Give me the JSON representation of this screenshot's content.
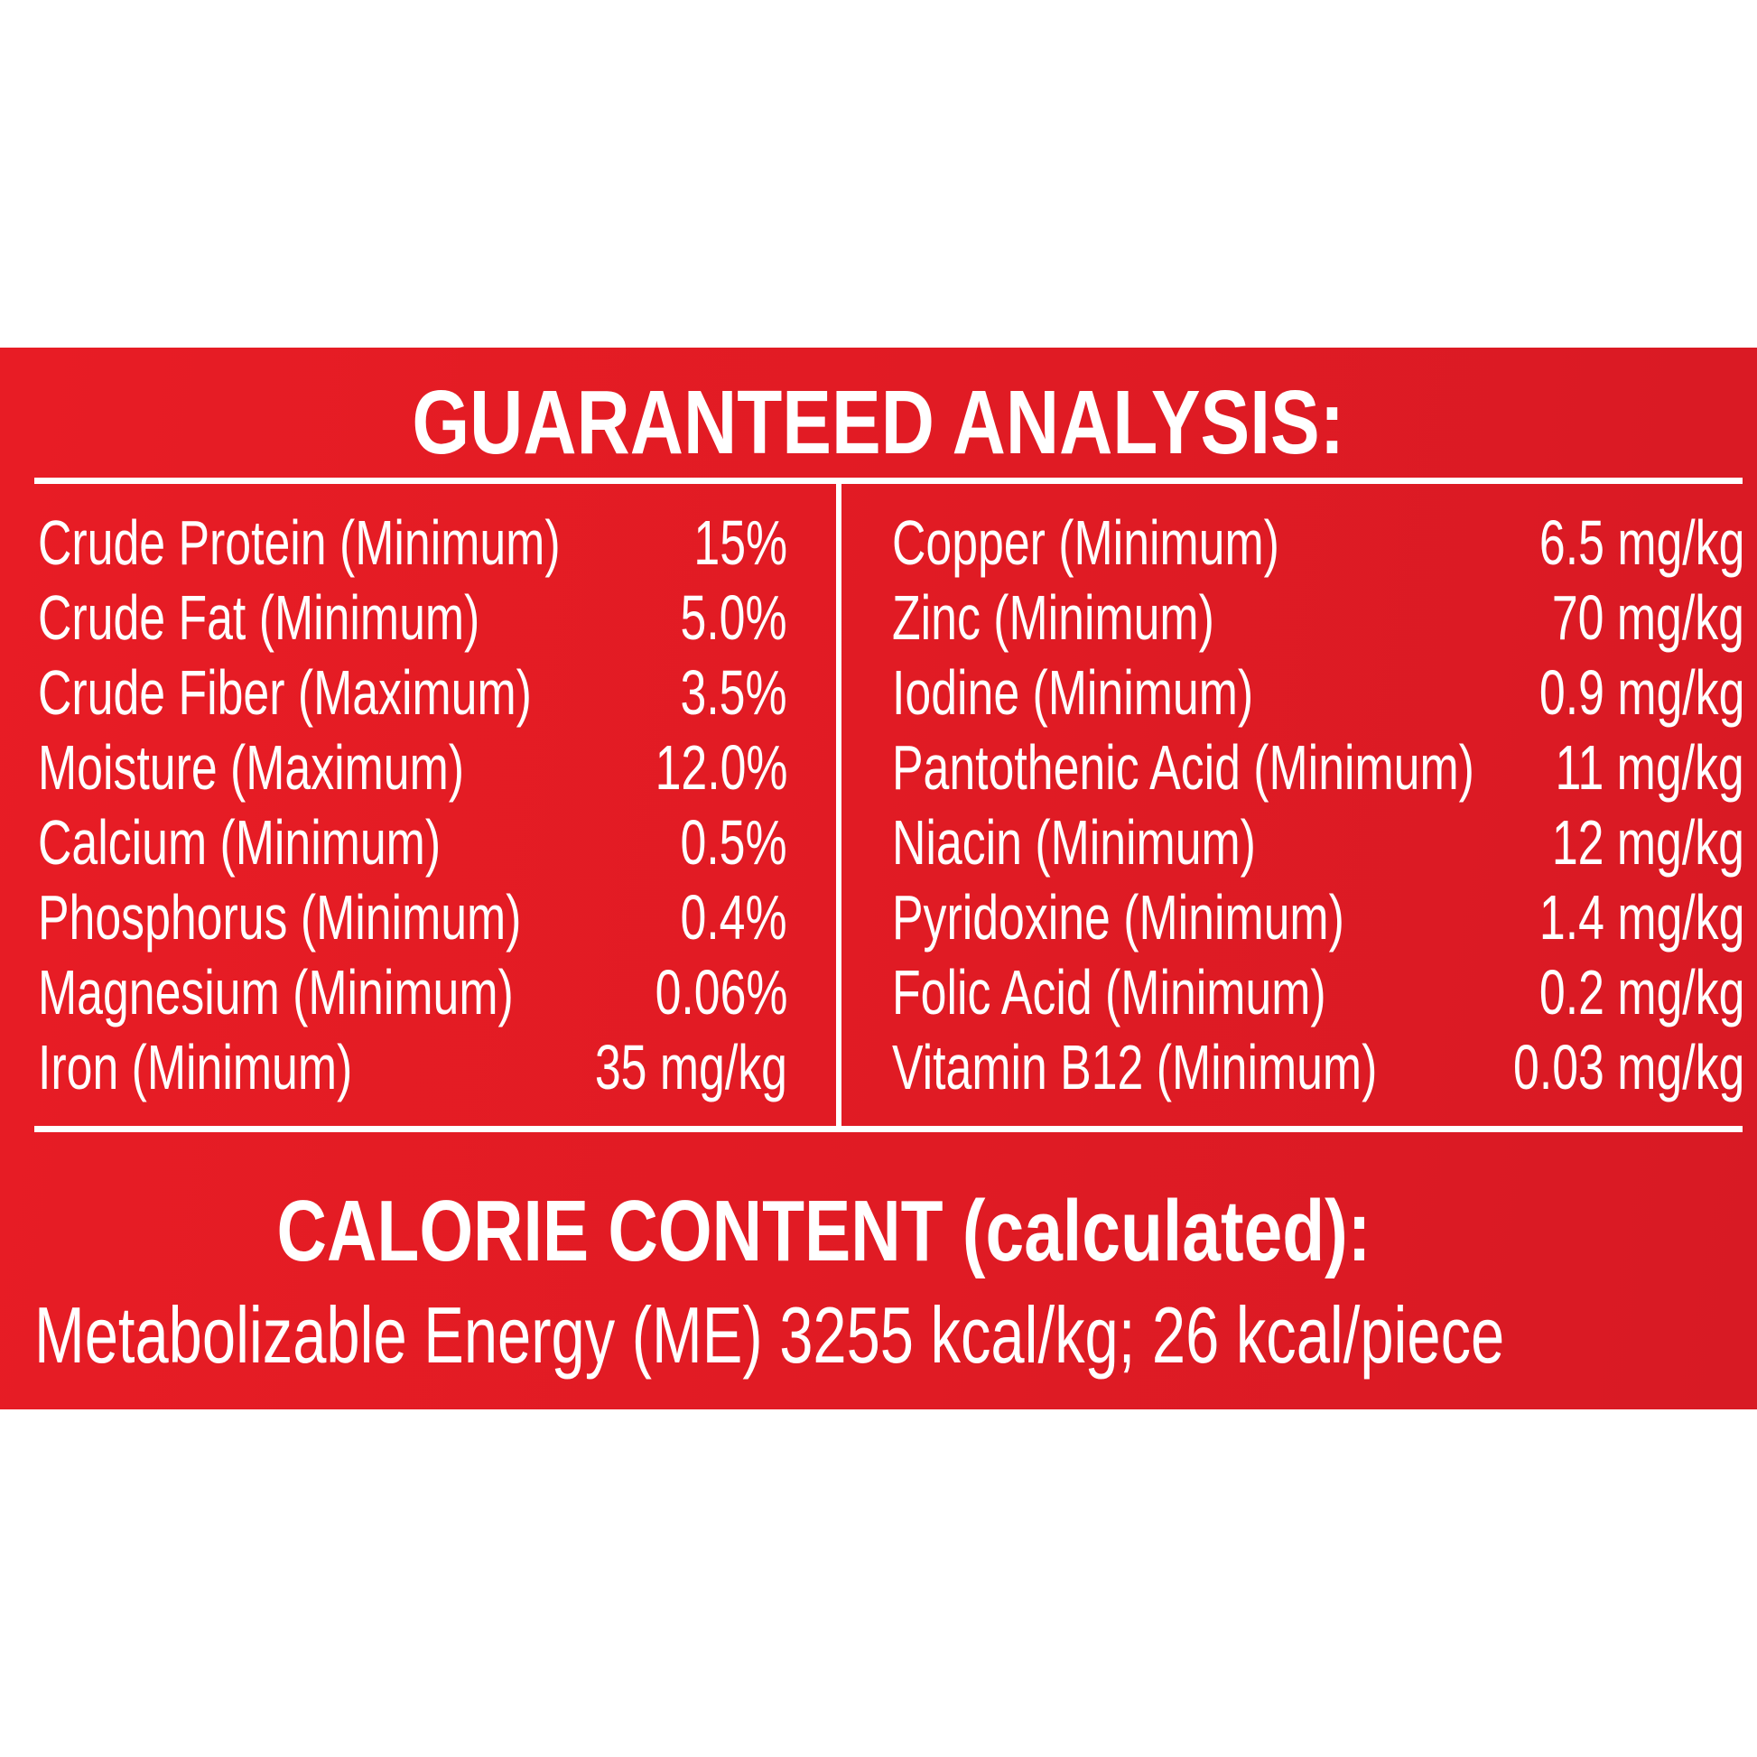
{
  "title": "GUARANTEED ANALYSIS:",
  "left_column": [
    {
      "label": "Crude Protein (Minimum)",
      "value": "15%"
    },
    {
      "label": "Crude Fat (Minimum)",
      "value": "5.0%"
    },
    {
      "label": "Crude Fiber (Maximum)",
      "value": "3.5%"
    },
    {
      "label": "Moisture (Maximum)",
      "value": "12.0%"
    },
    {
      "label": "Calcium (Minimum)",
      "value": "0.5%"
    },
    {
      "label": "Phosphorus (Minimum)",
      "value": "0.4%"
    },
    {
      "label": "Magnesium (Minimum)",
      "value": "0.06%"
    },
    {
      "label": "Iron (Minimum)",
      "value": "35 mg/kg"
    }
  ],
  "right_column": [
    {
      "label": "Copper (Minimum)",
      "value": "6.5 mg/kg"
    },
    {
      "label": "Zinc (Minimum)",
      "value": "70 mg/kg"
    },
    {
      "label": "Iodine (Minimum)",
      "value": "0.9 mg/kg"
    },
    {
      "label": "Pantothenic Acid (Minimum)",
      "value": "11 mg/kg"
    },
    {
      "label": "Niacin (Minimum)",
      "value": "12 mg/kg"
    },
    {
      "label": "Pyridoxine (Minimum)",
      "value": "1.4 mg/kg"
    },
    {
      "label": "Folic Acid (Minimum)",
      "value": "0.2 mg/kg"
    },
    {
      "label": "Vitamin B12 (Minimum)",
      "value": "0.03 mg/kg"
    }
  ],
  "calorie": {
    "heading": "CALORIE CONTENT (calculated):",
    "text": "Metabolizable Energy (ME) 3255 kcal/kg; 26 kcal/piece"
  },
  "colors": {
    "panel": "#e31b24",
    "text": "#ffffff"
  }
}
